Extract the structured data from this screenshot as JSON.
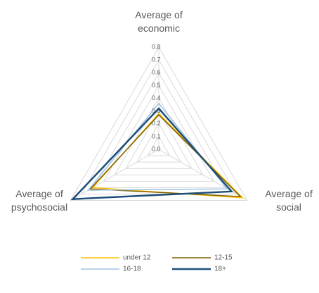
{
  "chart_data": {
    "type": "radar",
    "categories": [
      "Average of economic",
      "Average of social",
      "Average of psychosocial"
    ],
    "series": [
      {
        "name": "under 12",
        "color": "#ffc000",
        "values": [
          0.28,
          0.76,
          0.6
        ]
      },
      {
        "name": "12-15",
        "color": "#7f6000",
        "values": [
          0.27,
          0.74,
          0.62
        ]
      },
      {
        "name": "16-18",
        "color": "#9dc3e6",
        "values": [
          0.36,
          0.62,
          0.64
        ]
      },
      {
        "name": "18+",
        "color": "#1f4e79",
        "values": [
          0.32,
          0.66,
          0.78
        ]
      }
    ],
    "ylim": [
      0,
      0.8
    ],
    "yticks": [
      {
        "value": 0,
        "label": "0.0"
      },
      0.1,
      0.2,
      0.3,
      0.4,
      0.5,
      0.6,
      0.7,
      0.8
    ],
    "grid": true,
    "legend": "bottom"
  }
}
